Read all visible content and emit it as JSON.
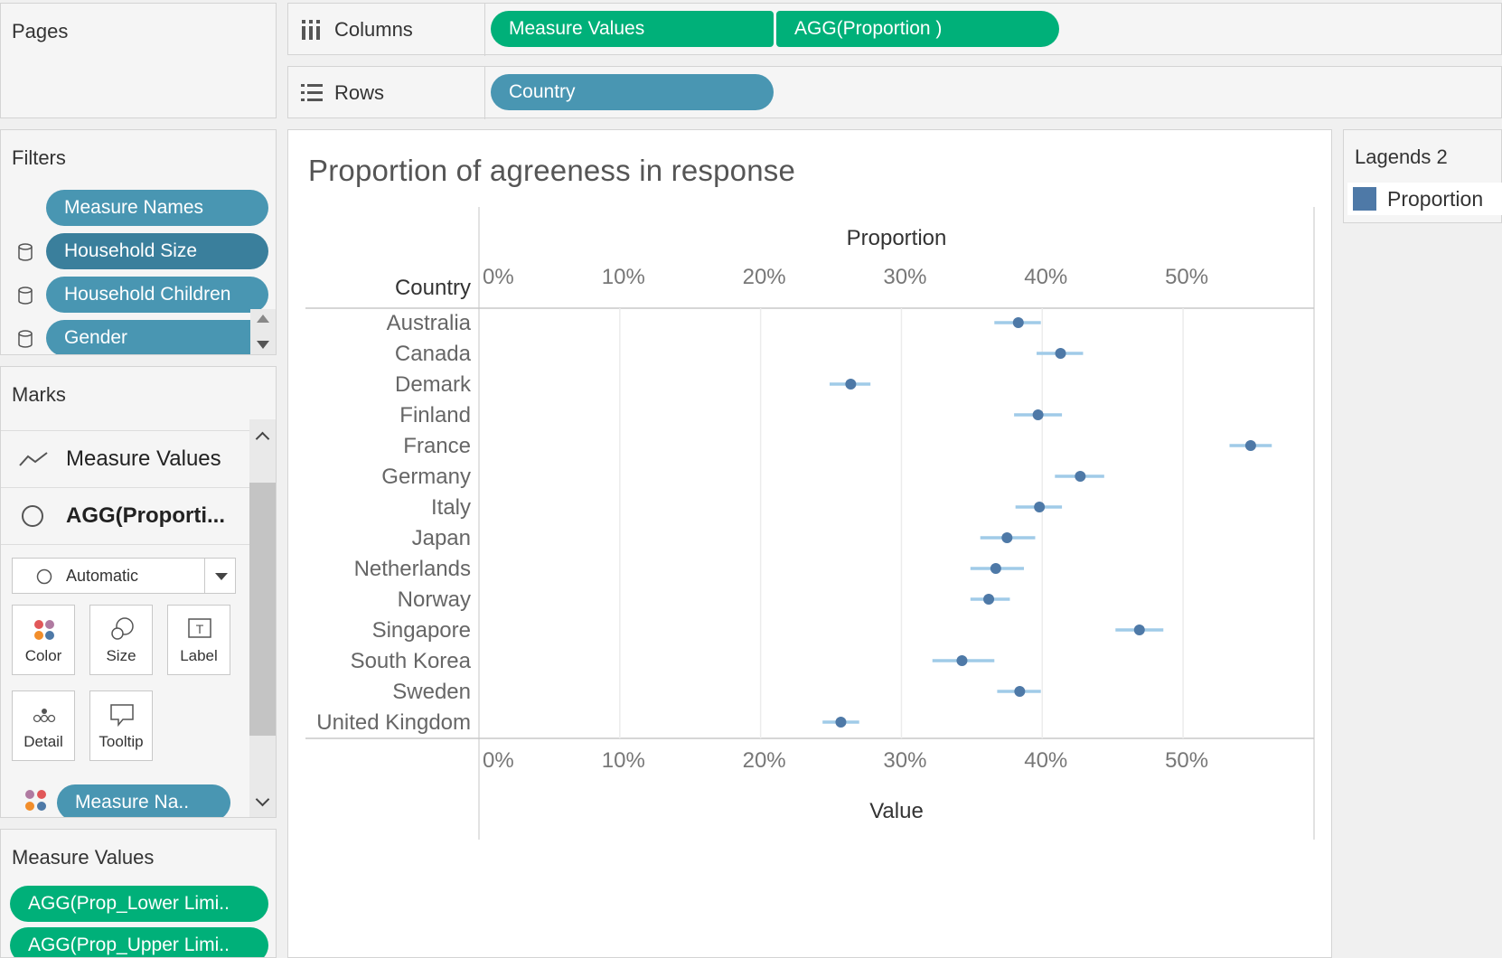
{
  "pages": {
    "title": "Pages"
  },
  "columns_shelf": {
    "label": "Columns",
    "pills": [
      "Measure Values",
      "AGG(Proportion )"
    ]
  },
  "rows_shelf": {
    "label": "Rows",
    "pills": [
      "Country"
    ]
  },
  "filters": {
    "title": "Filters",
    "items": [
      "Measure Names",
      "Household Size",
      "Household Children",
      "Gender"
    ]
  },
  "marks": {
    "title": "Marks",
    "layers": [
      "Measure Values",
      "AGG(Proporti..."
    ],
    "mark_type": "Automatic",
    "buttons": [
      "Color",
      "Size",
      "Label",
      "Detail",
      "Tooltip"
    ],
    "color_pill": "Measure Na.."
  },
  "measure_values": {
    "title": "Measure Values",
    "pills": [
      "AGG(Prop_Lower Limi..",
      "AGG(Prop_Upper Limi.."
    ]
  },
  "legend": {
    "title": "Lagends 2",
    "item": "Proportion",
    "color": "#4e79a7"
  },
  "chart_data": {
    "type": "scatter",
    "title": "Proportion of agreeness in response",
    "row_header": "Country",
    "top_axis_title": "Proportion",
    "bottom_axis_title": "Value",
    "x_ticks": [
      "0%",
      "10%",
      "20%",
      "30%",
      "40%",
      "50%"
    ],
    "x_tick_values": [
      0,
      10,
      20,
      30,
      40,
      50
    ],
    "xlim": [
      0,
      59.3
    ],
    "grid": true,
    "countries": [
      "Australia",
      "Canada",
      "Demark",
      "Finland",
      "France",
      "Germany",
      "Italy",
      "Japan",
      "Netherlands",
      "Norway",
      "Singapore",
      "South Korea",
      "Sweden",
      "United Kingdom"
    ],
    "proportion": [
      38.3,
      41.3,
      26.4,
      39.7,
      54.8,
      42.7,
      39.8,
      37.5,
      36.7,
      36.2,
      46.9,
      34.3,
      38.4,
      25.7
    ],
    "lower_limit": [
      36.6,
      39.6,
      24.9,
      38.0,
      53.3,
      40.9,
      38.1,
      35.6,
      34.9,
      34.9,
      45.2,
      32.2,
      36.8,
      24.4
    ],
    "upper_limit": [
      39.9,
      42.9,
      27.8,
      41.4,
      56.3,
      44.4,
      41.4,
      39.5,
      38.7,
      37.7,
      48.6,
      36.6,
      39.9,
      27.0
    ],
    "point_color": "#4e79a7",
    "ci_color": "#a0cbe8"
  }
}
